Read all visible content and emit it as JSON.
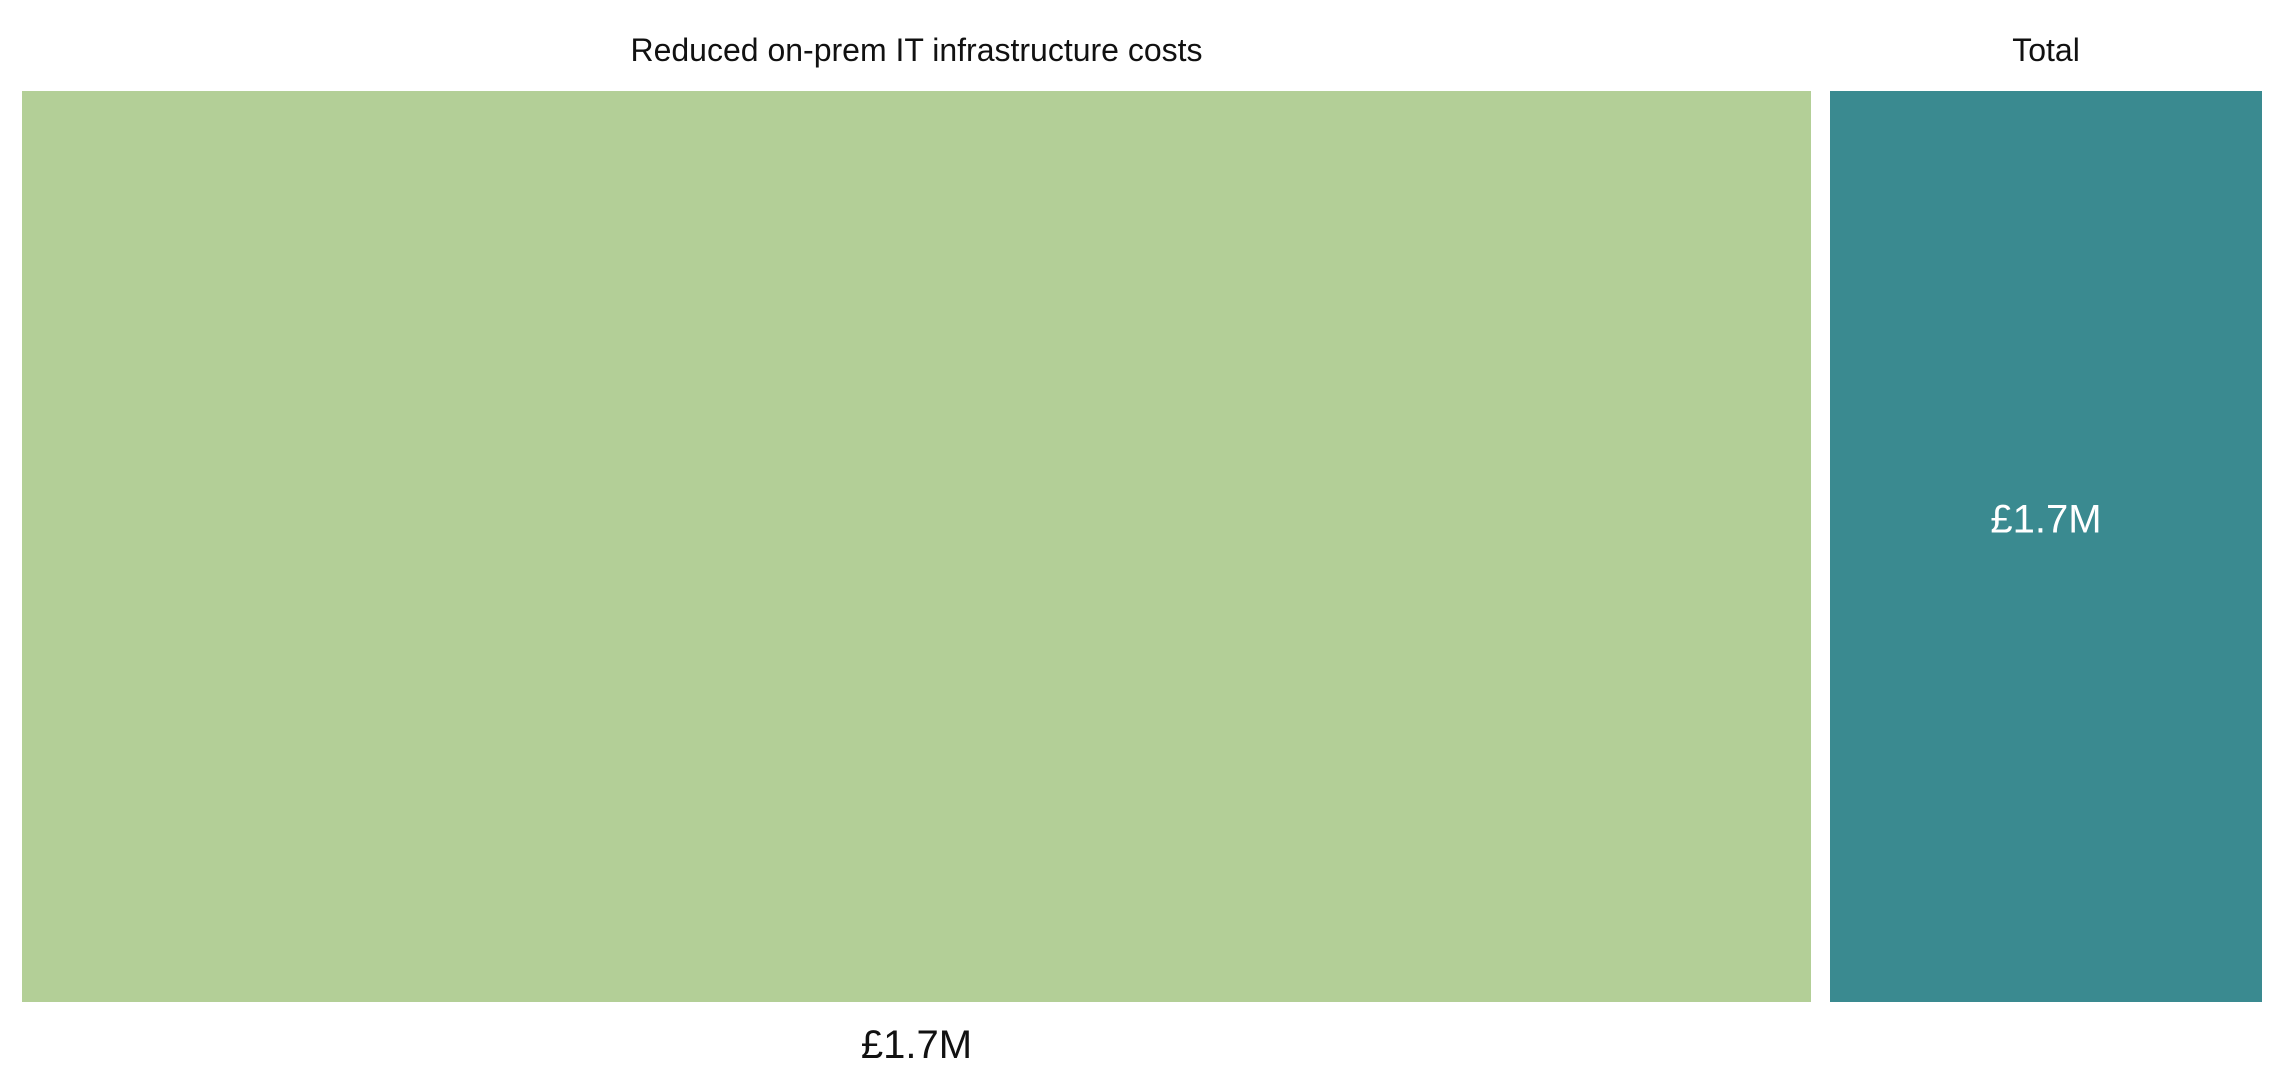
{
  "chart_data": {
    "type": "bar",
    "categories": [
      "Reduced on-prem IT infrastructure costs",
      "Total"
    ],
    "values": [
      1.7,
      1.7
    ],
    "value_labels": [
      "£1.7M",
      "£1.7M"
    ],
    "unit": "£M",
    "colors": [
      "#b3cf97",
      "#3a8a90"
    ],
    "title": "",
    "xlabel": "",
    "ylabel": "",
    "grid": false,
    "legend": "none"
  }
}
